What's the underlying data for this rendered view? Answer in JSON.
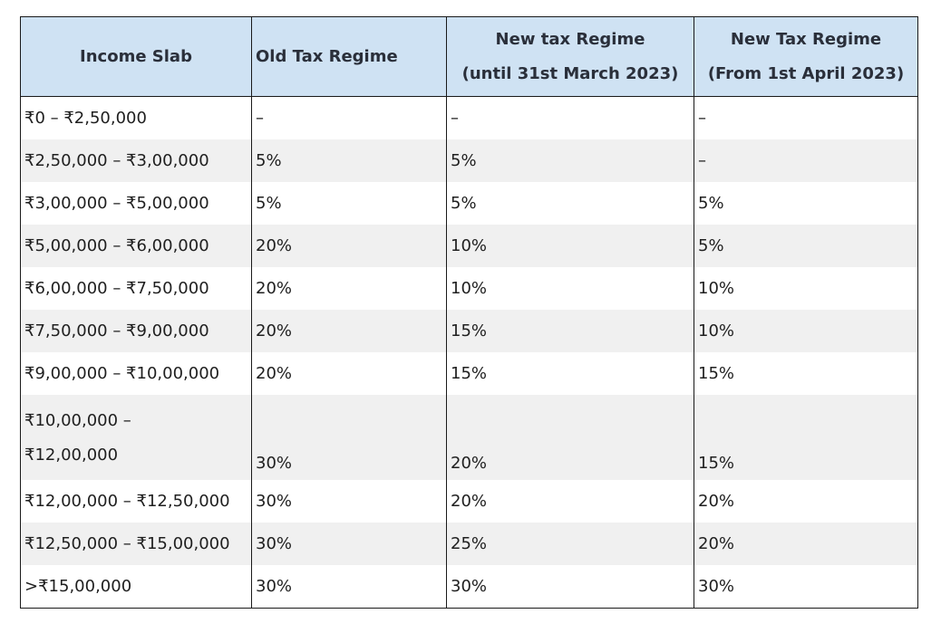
{
  "table": {
    "headers": [
      {
        "lines": [
          "Income Slab"
        ]
      },
      {
        "lines": [
          "Old Tax Regime"
        ]
      },
      {
        "lines": [
          "New tax Regime",
          "(until 31st March 2023)"
        ]
      },
      {
        "lines": [
          "New Tax Regime",
          "(From 1st April 2023)"
        ]
      }
    ],
    "rows": [
      {
        "slab": [
          "₹0 – ₹2,50,000"
        ],
        "old": "–",
        "new_until": "–",
        "new_from": "–"
      },
      {
        "slab": [
          "₹2,50,000  – ₹3,00,000"
        ],
        "old": "5%",
        "new_until": "5%",
        "new_from": "–"
      },
      {
        "slab": [
          "₹3,00,000 – ₹5,00,000"
        ],
        "old": "5%",
        "new_until": "5%",
        "new_from": "5%"
      },
      {
        "slab": [
          "₹5,00,000 – ₹6,00,000"
        ],
        "old": "20%",
        "new_until": "10%",
        "new_from": "5%"
      },
      {
        "slab": [
          "₹6,00,000 – ₹7,50,000"
        ],
        "old": "20%",
        "new_until": "10%",
        "new_from": "10%"
      },
      {
        "slab": [
          "₹7,50,000 – ₹9,00,000"
        ],
        "old": "20%",
        "new_until": "15%",
        "new_from": "10%"
      },
      {
        "slab": [
          "₹9,00,000 – ₹10,00,000"
        ],
        "old": "20%",
        "new_until": "15%",
        "new_from": "15%"
      },
      {
        "slab": [
          "₹10,00,000 –",
          "₹12,00,000"
        ],
        "old": "30%",
        "new_until": "20%",
        "new_from": "15%"
      },
      {
        "slab": [
          "₹12,00,000 – ₹12,50,000"
        ],
        "old": "30%",
        "new_until": "20%",
        "new_from": "20%"
      },
      {
        "slab": [
          "₹12,50,000 – ₹15,00,000"
        ],
        "old": "30%",
        "new_until": "25%",
        "new_from": "20%"
      },
      {
        "slab": [
          ">₹15,00,000"
        ],
        "old": "30%",
        "new_until": "30%",
        "new_from": "30%"
      }
    ]
  },
  "colors": {
    "header_bg": "#cfe2f3",
    "stripe_bg": "#f0f0f0",
    "border": "#1a1a1a"
  }
}
